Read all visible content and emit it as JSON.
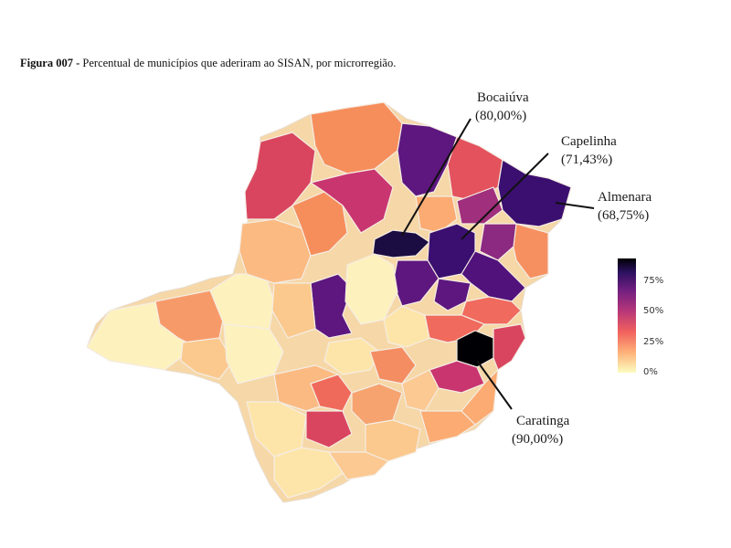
{
  "caption": {
    "label": "Figura 007 -",
    "text": " Percentual de municípios que aderiram ao SISAN, por microrregião."
  },
  "callouts": [
    {
      "name": "Bocaiúva",
      "value": "(80,00%)"
    },
    {
      "name": "Capelinha",
      "value": "(71,43%)"
    },
    {
      "name": "Almenara",
      "value": "(68,75%)"
    },
    {
      "name": "Caratinga",
      "value": "(90,00%)"
    }
  ],
  "legend": {
    "ticks": [
      "75%",
      "50%",
      "25%",
      "0%"
    ],
    "colors": [
      "#fcfdbf",
      "#feb078",
      "#f1605d",
      "#b73779",
      "#721f81",
      "#2c115f",
      "#000004"
    ]
  },
  "highlight_colors": {
    "bocaiuva": "#1b0c41",
    "capelinha": "#3b0f70",
    "almenara": "#3b0f70",
    "caratinga": "#000004"
  }
}
